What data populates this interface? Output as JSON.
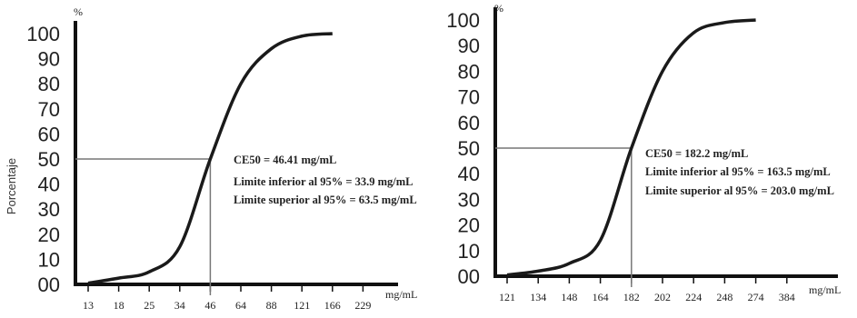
{
  "ylabel": "Porcentaje",
  "chart_data": [
    {
      "type": "line",
      "ylabel_unit": "%",
      "xlabel": "mg/mL",
      "y_ticks": [
        "00",
        "10",
        "20",
        "30",
        "40",
        "50",
        "60",
        "70",
        "80",
        "90",
        "100"
      ],
      "x_ticks": [
        "13",
        "18",
        "25",
        "34",
        "46",
        "64",
        "88",
        "121",
        "166",
        "229"
      ],
      "ylim": [
        0,
        100
      ],
      "curve": [
        {
          "x": 13,
          "y": 0.5
        },
        {
          "x": 18,
          "y": 2.5
        },
        {
          "x": 25,
          "y": 5
        },
        {
          "x": 34,
          "y": 15
        },
        {
          "x": 46,
          "y": 50
        },
        {
          "x": 64,
          "y": 80
        },
        {
          "x": 88,
          "y": 94
        },
        {
          "x": 121,
          "y": 99
        },
        {
          "x": 166,
          "y": 100
        }
      ],
      "ce50_marker": {
        "x": 46,
        "y": 50
      },
      "annotations": [
        "CE50 = 46.41 mg/mL",
        "Limite inferior al 95% = 33.9 mg/mL",
        "Limite superior al 95% = 63.5 mg/mL"
      ]
    },
    {
      "type": "line",
      "ylabel_unit": "%",
      "xlabel": "mg/mL",
      "y_ticks": [
        "00",
        "10",
        "20",
        "30",
        "40",
        "50",
        "60",
        "70",
        "80",
        "90",
        "100"
      ],
      "x_ticks": [
        "121",
        "134",
        "148",
        "164",
        "182",
        "202",
        "224",
        "248",
        "274",
        "384"
      ],
      "ylim": [
        0,
        100
      ],
      "curve": [
        {
          "x": 121,
          "y": 0.5
        },
        {
          "x": 134,
          "y": 2
        },
        {
          "x": 148,
          "y": 5
        },
        {
          "x": 164,
          "y": 14
        },
        {
          "x": 182,
          "y": 50
        },
        {
          "x": 202,
          "y": 80
        },
        {
          "x": 224,
          "y": 95
        },
        {
          "x": 248,
          "y": 99
        },
        {
          "x": 274,
          "y": 100
        }
      ],
      "ce50_marker": {
        "x": 182,
        "y": 50
      },
      "annotations": [
        "CE50 = 182.2 mg/mL",
        "Limite inferior al 95% = 163.5 mg/mL",
        "Limite superior al 95% = 203.0 mg/mL"
      ]
    }
  ]
}
